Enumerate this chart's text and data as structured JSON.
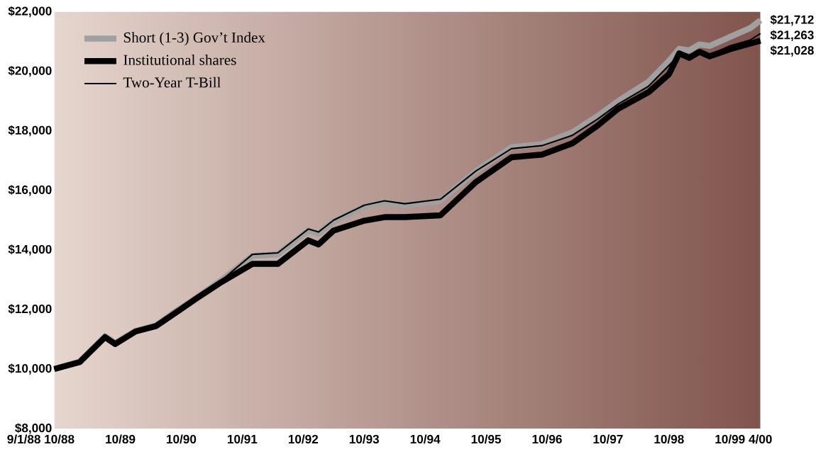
{
  "chart_data": {
    "type": "line",
    "x": [
      "1988-09",
      "1989-02",
      "1989-07",
      "1989-09",
      "1990-01",
      "1990-05",
      "1990-09",
      "1991-01",
      "1991-06",
      "1991-12",
      "1992-05",
      "1992-11",
      "1993-01",
      "1993-04",
      "1993-10",
      "1994-02",
      "1994-06",
      "1995-01",
      "1995-08",
      "1996-03",
      "1996-09",
      "1997-03",
      "1997-08",
      "1997-12",
      "1998-06",
      "1998-10",
      "1998-12",
      "1999-02",
      "1999-04",
      "1999-06",
      "1999-10",
      "2000-02",
      "2000-04"
    ],
    "series": [
      {
        "name": "Short (1-3) Gov’t Index",
        "color": "#a0a0a0",
        "values": [
          10000,
          10250,
          11100,
          10870,
          11280,
          11460,
          11950,
          12390,
          13000,
          13800,
          13850,
          14650,
          14550,
          14950,
          15450,
          15600,
          15500,
          15650,
          16650,
          17450,
          17550,
          17950,
          18500,
          19000,
          19650,
          20350,
          20750,
          20700,
          20900,
          20850,
          21150,
          21450,
          21712
        ],
        "value_labels": [
          null,
          null,
          null,
          null,
          null,
          null,
          null,
          null,
          null,
          null,
          null,
          null,
          null,
          null,
          null,
          null,
          null,
          null,
          null,
          null,
          null,
          null,
          null,
          null,
          null,
          null,
          null,
          null,
          null,
          null,
          null,
          null,
          "$21,712"
        ]
      },
      {
        "name": "Institutional shares",
        "color": "#000000",
        "values": [
          10000,
          10230,
          11070,
          10840,
          11260,
          11440,
          11900,
          12370,
          12930,
          13530,
          13530,
          14320,
          14180,
          14650,
          14980,
          15100,
          15100,
          15160,
          16280,
          17110,
          17200,
          17580,
          18180,
          18740,
          19300,
          19900,
          20600,
          20450,
          20650,
          20500,
          20740,
          20930,
          21028
        ],
        "value_labels": [
          null,
          null,
          null,
          null,
          null,
          null,
          null,
          null,
          null,
          null,
          null,
          null,
          null,
          null,
          null,
          null,
          null,
          null,
          null,
          null,
          null,
          null,
          null,
          null,
          null,
          null,
          null,
          null,
          null,
          null,
          null,
          null,
          "$21,028"
        ]
      },
      {
        "name": "Two-Year T-Bill",
        "color": "#000000",
        "values": [
          10000,
          10240,
          11080,
          10860,
          11270,
          11450,
          11930,
          12380,
          12990,
          13850,
          13900,
          14700,
          14600,
          15000,
          15500,
          15650,
          15550,
          15700,
          16650,
          17400,
          17500,
          17850,
          18400,
          18900,
          19500,
          20200,
          20550,
          20450,
          20600,
          20550,
          20850,
          21050,
          21263
        ],
        "value_labels": [
          null,
          null,
          null,
          null,
          null,
          null,
          null,
          null,
          null,
          null,
          null,
          null,
          null,
          null,
          null,
          null,
          null,
          null,
          null,
          null,
          null,
          null,
          null,
          null,
          null,
          null,
          null,
          null,
          null,
          null,
          null,
          null,
          "$21,263"
        ]
      }
    ],
    "xlim": [
      "1988-09",
      "2000-04"
    ],
    "annotations": [
      "9/1/88"
    ],
    "xticks": [
      {
        "value": "1988-10",
        "label": "10/88"
      },
      {
        "value": "1989-10",
        "label": "10/89"
      },
      {
        "value": "1990-10",
        "label": "10/90"
      },
      {
        "value": "1991-10",
        "label": "10/91"
      },
      {
        "value": "1992-10",
        "label": "10/92"
      },
      {
        "value": "1993-10",
        "label": "10/93"
      },
      {
        "value": "1994-10",
        "label": "10/94"
      },
      {
        "value": "1995-10",
        "label": "10/95"
      },
      {
        "value": "1996-10",
        "label": "10/96"
      },
      {
        "value": "1997-10",
        "label": "10/97"
      },
      {
        "value": "1998-10",
        "label": "10/98"
      },
      {
        "value": "1999-10",
        "label": "10/99"
      },
      {
        "value": "2000-04",
        "label": "4/00"
      }
    ],
    "ylim": [
      8000,
      22000
    ],
    "yticks": [
      {
        "value": 8000,
        "label": "$8,000"
      },
      {
        "value": 10000,
        "label": "$10,000"
      },
      {
        "value": 12000,
        "label": "$12,000"
      },
      {
        "value": 14000,
        "label": "$14,000"
      },
      {
        "value": 16000,
        "label": "$16,000"
      },
      {
        "value": 18000,
        "label": "$18,000"
      },
      {
        "value": 20000,
        "label": "$20,000"
      },
      {
        "value": 22000,
        "label": "$22,000"
      }
    ],
    "legend": "top left",
    "grid": false
  }
}
